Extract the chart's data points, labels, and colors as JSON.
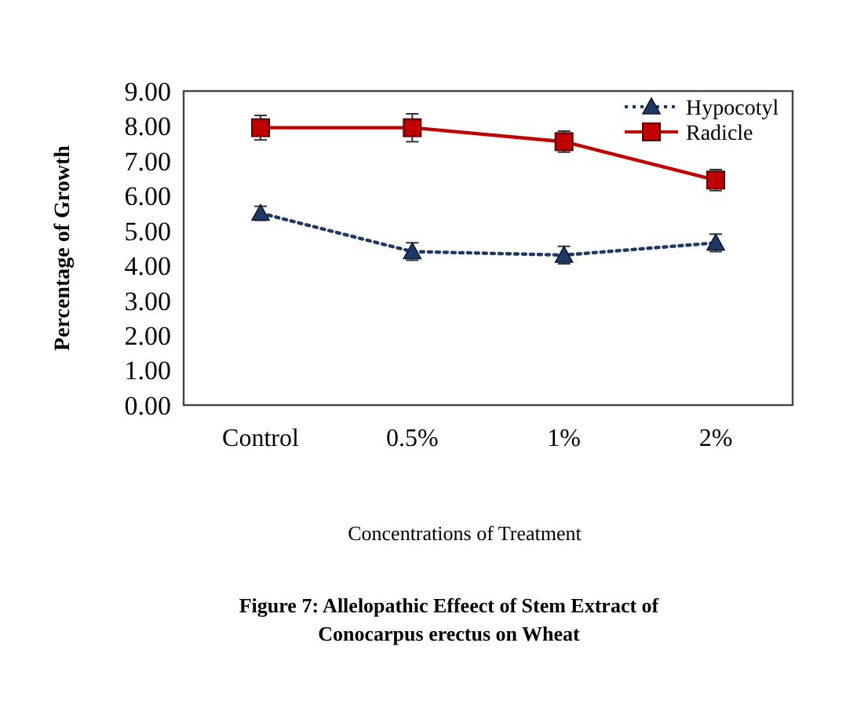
{
  "chart_data": {
    "type": "line",
    "title": "Figure 7: Allelopathic Effeect of Stem Extract of Conocarpus erectus on Wheat",
    "xlabel": "Concentrations of Treatment",
    "ylabel": "Percentage of Growth",
    "categories": [
      "Control",
      "0.5%",
      "1%",
      "2%"
    ],
    "series": [
      {
        "name": "Hypocotyl",
        "color": "#1f3864",
        "values": [
          5.5,
          4.4,
          4.3,
          4.65
        ],
        "errors": [
          0.2,
          0.25,
          0.25,
          0.25
        ],
        "marker": "triangle",
        "line_style": "dotted"
      },
      {
        "name": "Radicle",
        "color": "#c00000",
        "values": [
          7.95,
          7.95,
          7.55,
          6.45
        ],
        "errors": [
          0.35,
          0.4,
          0.3,
          0.3
        ],
        "marker": "square",
        "line_style": "solid"
      }
    ],
    "ylim": [
      0,
      9
    ],
    "yticks": [
      {
        "value": 0,
        "label": "0.00"
      },
      {
        "value": 1,
        "label": "1.00"
      },
      {
        "value": 2,
        "label": "2.00"
      },
      {
        "value": 3,
        "label": "3.00"
      },
      {
        "value": 4,
        "label": "4.00"
      },
      {
        "value": 5,
        "label": "5.00"
      },
      {
        "value": 6,
        "label": "6.00"
      },
      {
        "value": 7,
        "label": "7.00"
      },
      {
        "value": 8,
        "label": "8.00"
      },
      {
        "value": 9,
        "label": "9.00"
      }
    ],
    "grid": false,
    "legend": "top right"
  }
}
